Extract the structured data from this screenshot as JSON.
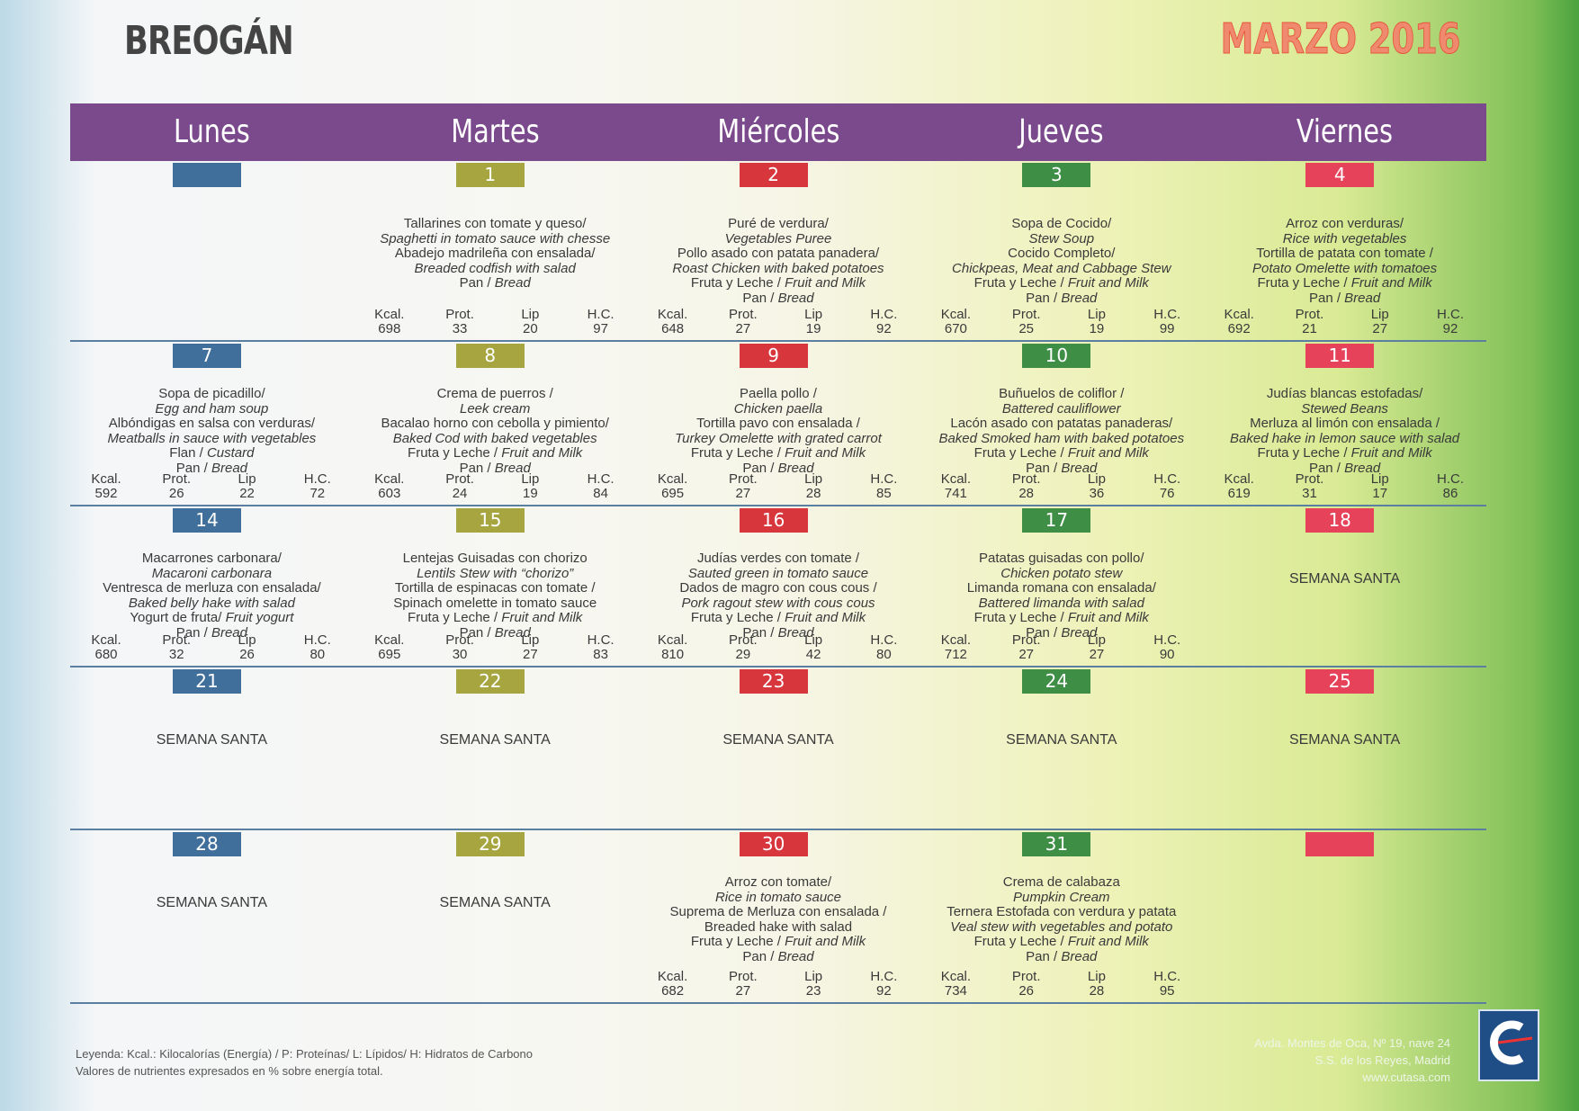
{
  "header": {
    "school": "BREOGÁN",
    "month": "MARZO 2016"
  },
  "days": [
    "Lunes",
    "Martes",
    "Miércoles",
    "Jueves",
    "Viernes"
  ],
  "nutrient_labels": [
    "Kcal.",
    "Prot.",
    "Lip",
    "H.C."
  ],
  "weeks": [
    [
      {
        "day": null
      },
      {
        "day": 1,
        "lines": [
          "Tallarines con tomate y queso/",
          {
            "en": "Spaghetti in tomato sauce with chesse"
          },
          "Abadejo madrileña con ensalada/",
          {
            "en": "Breaded codfish  with salad"
          },
          {
            "es": "Pan /",
            "en": "Bread"
          }
        ],
        "nutrients": [
          698,
          33,
          20,
          97
        ]
      },
      {
        "day": 2,
        "lines": [
          "Puré de verdura/",
          {
            "en": "Vegetables Puree"
          },
          "Pollo asado con patata panadera/",
          {
            "en": "Roast Chicken with baked potatoes"
          },
          {
            "es": "Fruta y Leche /",
            "en": "Fruit and Milk"
          },
          {
            "es": "Pan /",
            "en": "Bread"
          }
        ],
        "nutrients": [
          648,
          27,
          19,
          92
        ]
      },
      {
        "day": 3,
        "lines": [
          "Sopa de Cocido/",
          {
            "en": "Stew Soup"
          },
          "Cocido Completo/",
          {
            "en": "Chickpeas, Meat and Cabbage Stew"
          },
          {
            "es": "Fruta y Leche /",
            "en": "Fruit and Milk"
          },
          {
            "es": "Pan /",
            "en": "Bread"
          }
        ],
        "nutrients": [
          670,
          25,
          19,
          99
        ]
      },
      {
        "day": 4,
        "lines": [
          "Arroz con verduras/",
          {
            "en": "Rice with vegetables"
          },
          "Tortilla de patata con tomate /",
          {
            "en": "Potato Omelette with tomatoes"
          },
          {
            "es": "Fruta y Leche /",
            "en": "Fruit and Milk"
          },
          {
            "es": "Pan /",
            "en": "Bread"
          }
        ],
        "nutrients": [
          692,
          21,
          27,
          92
        ]
      }
    ],
    [
      {
        "day": 7,
        "lines": [
          "Sopa de picadillo/",
          {
            "en": "Egg and ham soup"
          },
          "Albóndigas en salsa con verduras/",
          {
            "en": "Meatballs in sauce with vegetables"
          },
          {
            "es": "Flan /",
            "en": "Custard"
          },
          {
            "es": "Pan /",
            "en": "Bread"
          }
        ],
        "nutrients": [
          592,
          26,
          22,
          72
        ]
      },
      {
        "day": 8,
        "lines": [
          "Crema de puerros /",
          {
            "en": "Leek cream"
          },
          "Bacalao horno con cebolla y pimiento/",
          {
            "en": "Baked Cod with baked vegetables"
          },
          {
            "es": "Fruta y Leche /",
            "en": "Fruit and Milk"
          },
          {
            "es": "Pan /",
            "en": "Bread"
          }
        ],
        "nutrients": [
          603,
          24,
          19,
          84
        ]
      },
      {
        "day": 9,
        "lines": [
          "Paella pollo /",
          {
            "en": "Chicken paella"
          },
          "Tortilla pavo con ensalada /",
          {
            "en": "Turkey Omelette with grated carrot"
          },
          {
            "es": "Fruta y Leche /",
            "en": "Fruit and Milk"
          },
          {
            "es": "Pan /",
            "en": "Bread"
          }
        ],
        "nutrients": [
          695,
          27,
          28,
          85
        ]
      },
      {
        "day": 10,
        "lines": [
          "Buñuelos de coliflor /",
          {
            "en": "Battered cauliflower"
          },
          "Lacón asado con patatas panaderas/",
          {
            "en": "Baked Smoked ham with baked potatoes"
          },
          {
            "es": "Fruta y Leche /",
            "en": "Fruit and Milk"
          },
          {
            "es": "Pan /",
            "en": "Bread"
          }
        ],
        "nutrients": [
          741,
          28,
          36,
          76
        ]
      },
      {
        "day": 11,
        "lines": [
          "Judías blancas estofadas/",
          {
            "en": "Stewed Beans"
          },
          "Merluza al limón con ensalada /",
          {
            "en": "Baked hake in lemon sauce with salad"
          },
          {
            "es": "Fruta y Leche /",
            "en": "Fruit and Milk"
          },
          {
            "es": "Pan /",
            "en": "Bread"
          }
        ],
        "nutrients": [
          619,
          31,
          17,
          86
        ]
      }
    ],
    [
      {
        "day": 14,
        "lines": [
          "Macarrones carbonara/",
          {
            "en": "Macaroni carbonara"
          },
          "Ventresca de merluza con ensalada/",
          {
            "en": "Baked belly hake with salad"
          },
          {
            "es": "Yogurt de fruta/",
            "en": "Fruit yogurt"
          },
          {
            "es": "Pan /",
            "en": "Bread"
          }
        ],
        "nutrients": [
          680,
          32,
          26,
          80
        ]
      },
      {
        "day": 15,
        "lines": [
          "Lentejas Guisadas con chorizo",
          {
            "en": "Lentils Stew with “chorizo”"
          },
          "Tortilla de espinacas con tomate /",
          "Spinach omelette in tomato sauce",
          {
            "es": "Fruta y Leche /",
            "en": "Fruit and Milk"
          },
          {
            "es": "Pan /",
            "en": "Bread"
          }
        ],
        "nutrients": [
          695,
          30,
          27,
          83
        ]
      },
      {
        "day": 16,
        "lines": [
          "Judías verdes con tomate /",
          {
            "en": "Sauted green in tomato sauce"
          },
          "Dados de magro con cous cous /",
          {
            "en": "Pork ragout stew with cous cous"
          },
          {
            "es": "Fruta y Leche /",
            "en": "Fruit and Milk"
          },
          {
            "es": "Pan /",
            "en": "Bread"
          }
        ],
        "nutrients": [
          810,
          29,
          42,
          80
        ]
      },
      {
        "day": 17,
        "lines": [
          "Patatas guisadas con pollo/",
          {
            "en": "Chicken potato stew"
          },
          "Limanda romana con ensalada/",
          {
            "en": "Battered limanda with salad"
          },
          {
            "es": "Fruta y Leche /",
            "en": "Fruit and Milk"
          },
          {
            "es": "Pan /",
            "en": "Bread"
          }
        ],
        "nutrients": [
          712,
          27,
          27,
          90
        ]
      },
      {
        "day": 18,
        "note": "SEMANA SANTA"
      }
    ],
    [
      {
        "day": 21,
        "note": "SEMANA SANTA"
      },
      {
        "day": 22,
        "note": "SEMANA SANTA"
      },
      {
        "day": 23,
        "note": "SEMANA SANTA"
      },
      {
        "day": 24,
        "note": "SEMANA SANTA"
      },
      {
        "day": 25,
        "note": "SEMANA SANTA"
      }
    ],
    [
      {
        "day": 28,
        "note": "SEMANA SANTA"
      },
      {
        "day": 29,
        "note": "SEMANA SANTA"
      },
      {
        "day": 30,
        "lines": [
          "Arroz con tomate/",
          {
            "en": "Rice in tomato sauce"
          },
          "Suprema de  Merluza con ensalada /",
          "Breaded hake with salad",
          {
            "es": "Fruta y Leche /",
            "en": "Fruit and Milk"
          },
          {
            "es": "Pan /",
            "en": "Bread"
          }
        ],
        "nutrients": [
          682,
          27,
          23,
          92
        ]
      },
      {
        "day": 31,
        "lines": [
          "Crema de calabaza",
          {
            "en": "Pumpkin Cream"
          },
          "Ternera  Estofada con verdura y patata",
          {
            "en": "Veal stew with vegetables and potato"
          },
          {
            "es": "Fruta y Leche /",
            "en": "Fruit and Milk"
          },
          {
            "es": "Pan /",
            "en": "Bread"
          }
        ],
        "nutrients": [
          734,
          26,
          28,
          95
        ]
      },
      {
        "day": null
      }
    ]
  ],
  "footer": {
    "legend": [
      "Leyenda: Kcal.: Kilocalorías (Energía) / P: Proteínas/ L: Lípidos/ H: Hidratos de Carbono",
      "Valores de nutrientes expresados en % sobre energía total."
    ],
    "address": [
      "Avda. Montes de Oca, Nº 19, nave 24",
      "S.S. de los Reyes, Madrid",
      "www.cutasa.com"
    ]
  }
}
